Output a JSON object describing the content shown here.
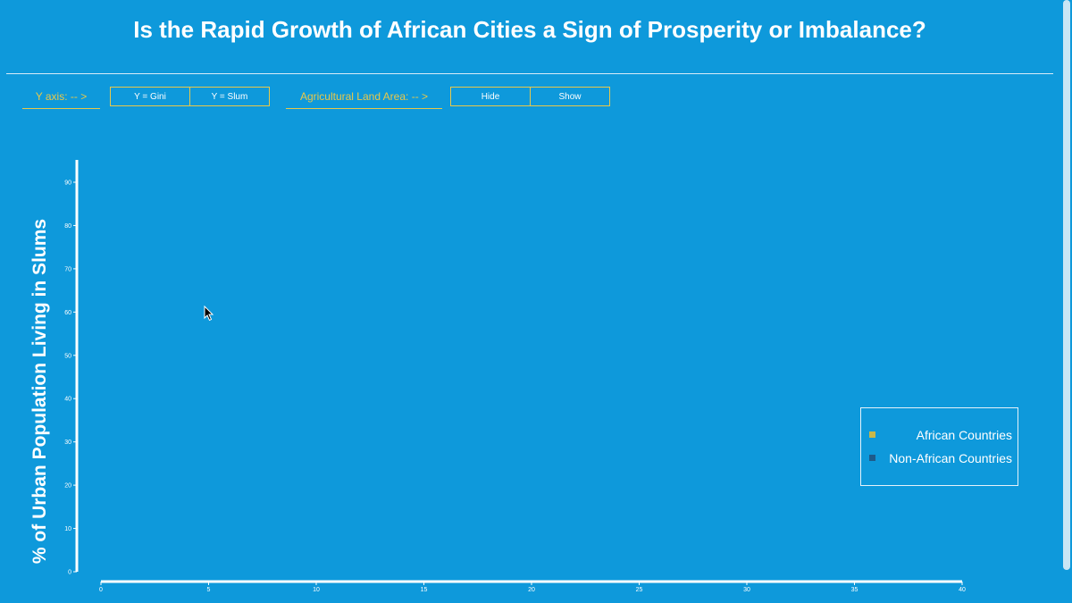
{
  "header": {
    "title": "Is the Rapid Growth of African Cities a Sign of Prosperity or Imbalance?"
  },
  "controls": {
    "y_axis_label": "Y axis: -- >",
    "y_gini_label": "Y = Gini",
    "y_slum_label": "Y = Slum",
    "ag_land_label": "Agricultural Land Area: -- >",
    "hide_label": "Hide",
    "show_label": "Show"
  },
  "legend": {
    "items": [
      {
        "label": "African Countries",
        "color": "#c9b84a"
      },
      {
        "label": "Non-African Countries",
        "color": "#1e5a8a"
      }
    ]
  },
  "chart_data": {
    "type": "scatter",
    "title": "",
    "xlabel": "",
    "ylabel": "% of Urban Population Living in Slums",
    "xlim": [
      0,
      40
    ],
    "ylim": [
      0,
      95
    ],
    "x_ticks": [
      "0",
      "5",
      "10",
      "15",
      "20",
      "25",
      "30",
      "35",
      "40"
    ],
    "y_ticks": [
      "0",
      "10",
      "20",
      "30",
      "40",
      "50",
      "60",
      "70",
      "80",
      "90"
    ],
    "series": [],
    "grid": false,
    "legend_position": "bottom-right"
  }
}
